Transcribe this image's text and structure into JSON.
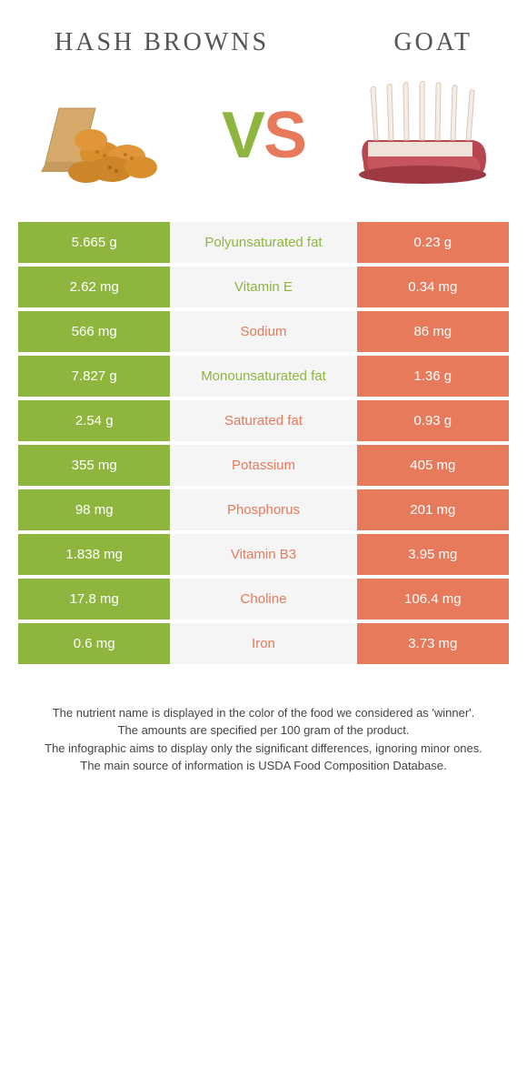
{
  "left_food": {
    "title": "HASH BROWNS"
  },
  "right_food": {
    "title": "GOAT"
  },
  "vs": {
    "v": "V",
    "s": "S"
  },
  "colors": {
    "left": "#8eb63f",
    "right": "#e77a5a",
    "mid_bg": "#f5f5f5"
  },
  "rows": [
    {
      "left": "5.665 g",
      "label": "Polyunsaturated fat",
      "right": "0.23 g",
      "winner": "left"
    },
    {
      "left": "2.62 mg",
      "label": "Vitamin E",
      "right": "0.34 mg",
      "winner": "left"
    },
    {
      "left": "566 mg",
      "label": "Sodium",
      "right": "86 mg",
      "winner": "right"
    },
    {
      "left": "7.827 g",
      "label": "Monounsaturated fat",
      "right": "1.36 g",
      "winner": "left"
    },
    {
      "left": "2.54 g",
      "label": "Saturated fat",
      "right": "0.93 g",
      "winner": "right"
    },
    {
      "left": "355 mg",
      "label": "Potassium",
      "right": "405 mg",
      "winner": "right"
    },
    {
      "left": "98 mg",
      "label": "Phosphorus",
      "right": "201 mg",
      "winner": "right"
    },
    {
      "left": "1.838 mg",
      "label": "Vitamin B3",
      "right": "3.95 mg",
      "winner": "right"
    },
    {
      "left": "17.8 mg",
      "label": "Choline",
      "right": "106.4 mg",
      "winner": "right"
    },
    {
      "left": "0.6 mg",
      "label": "Iron",
      "right": "3.73 mg",
      "winner": "right"
    }
  ],
  "footer": {
    "l1": "The nutrient name is displayed in the color of the food we considered as 'winner'.",
    "l2": "The amounts are specified per 100 gram of the product.",
    "l3": "The infographic aims to display only the significant differences, ignoring minor ones.",
    "l4": "The main source of information is USDA Food Composition Database."
  }
}
